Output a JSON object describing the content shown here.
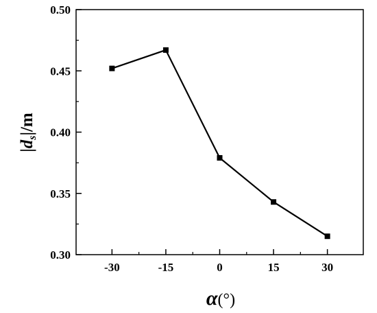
{
  "chart_data": {
    "type": "line",
    "x": [
      -30,
      -15,
      0,
      15,
      30
    ],
    "series": [
      {
        "values": [
          0.452,
          0.467,
          0.379,
          0.343,
          0.315
        ],
        "color": "#000000",
        "marker": "square"
      }
    ],
    "xlabel": {
      "symbol": "α",
      "unit": "(°)"
    },
    "ylabel": {
      "bar_open": "|",
      "var": "d",
      "sub": "s",
      "bar_close": "|",
      "unit": "/m"
    },
    "xlim": [
      -40,
      40
    ],
    "ylim": [
      0.3,
      0.5
    ],
    "xticks": [
      -30,
      -15,
      0,
      15,
      30
    ],
    "xtick_labels": [
      "-30",
      "-15",
      "0",
      "15",
      "30"
    ],
    "yticks": [
      0.3,
      0.35,
      0.4,
      0.45,
      0.5
    ],
    "ytick_labels": [
      "0.30",
      "0.35",
      "0.40",
      "0.45",
      "0.50"
    ],
    "grid": false,
    "legend": "none"
  }
}
